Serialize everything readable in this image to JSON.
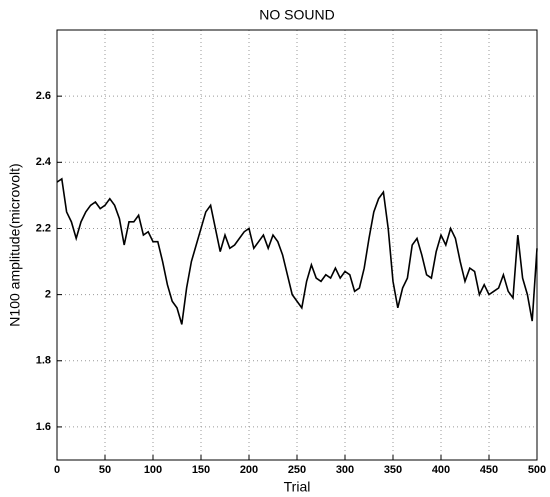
{
  "chart_data": {
    "type": "line",
    "title": "NO SOUND",
    "xlabel": "Trial",
    "ylabel": "N100 amplitude(microvolt)",
    "x": [
      0,
      5,
      10,
      15,
      20,
      25,
      30,
      35,
      40,
      45,
      50,
      55,
      60,
      65,
      70,
      75,
      80,
      85,
      90,
      95,
      100,
      105,
      110,
      115,
      120,
      125,
      130,
      135,
      140,
      145,
      150,
      155,
      160,
      165,
      170,
      175,
      180,
      185,
      190,
      195,
      200,
      205,
      210,
      215,
      220,
      225,
      230,
      235,
      240,
      245,
      250,
      255,
      260,
      265,
      270,
      275,
      280,
      285,
      290,
      295,
      300,
      305,
      310,
      315,
      320,
      325,
      330,
      335,
      340,
      345,
      350,
      355,
      360,
      365,
      370,
      375,
      380,
      385,
      390,
      395,
      400,
      405,
      410,
      415,
      420,
      425,
      430,
      435,
      440,
      445,
      450,
      455,
      460,
      465,
      470,
      475,
      480,
      485,
      490,
      495,
      500
    ],
    "values": [
      2.34,
      2.35,
      2.25,
      2.22,
      2.17,
      2.22,
      2.25,
      2.27,
      2.28,
      2.26,
      2.27,
      2.29,
      2.27,
      2.23,
      2.15,
      2.22,
      2.22,
      2.24,
      2.18,
      2.19,
      2.16,
      2.16,
      2.1,
      2.03,
      1.98,
      1.96,
      1.91,
      2.02,
      2.1,
      2.15,
      2.2,
      2.25,
      2.27,
      2.2,
      2.13,
      2.18,
      2.14,
      2.15,
      2.17,
      2.19,
      2.2,
      2.14,
      2.16,
      2.18,
      2.14,
      2.18,
      2.16,
      2.12,
      2.06,
      2.0,
      1.98,
      1.96,
      2.04,
      2.09,
      2.05,
      2.04,
      2.06,
      2.05,
      2.08,
      2.05,
      2.07,
      2.06,
      2.01,
      2.02,
      2.08,
      2.17,
      2.25,
      2.29,
      2.31,
      2.2,
      2.04,
      1.96,
      2.02,
      2.05,
      2.15,
      2.17,
      2.12,
      2.06,
      2.05,
      2.13,
      2.18,
      2.15,
      2.2,
      2.17,
      2.1,
      2.04,
      2.08,
      2.07,
      2.0,
      2.03,
      2.0,
      2.01,
      2.02,
      2.06,
      2.01,
      1.99,
      2.18,
      2.05,
      2.0,
      1.92,
      2.14
    ],
    "color": "#000000",
    "xlim": [
      0,
      500
    ],
    "xticks": [
      0,
      50,
      100,
      150,
      200,
      250,
      300,
      350,
      400,
      450,
      500
    ],
    "ylim": [
      1.5,
      2.8
    ],
    "yticks": [
      1.6,
      1.8,
      2,
      2.2,
      2.4,
      2.6
    ],
    "grid": true
  }
}
